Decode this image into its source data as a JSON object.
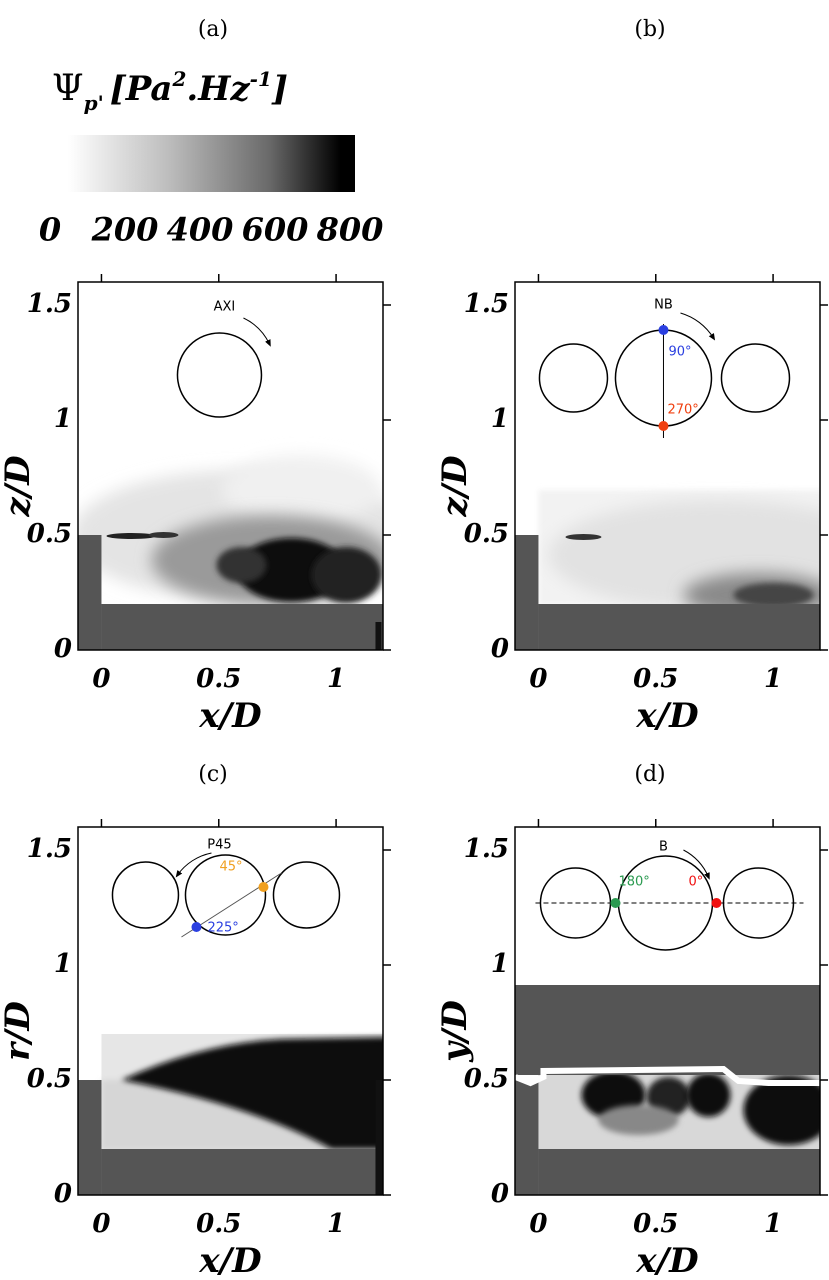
{
  "colorbar": {
    "title_parts": [
      "Ψ",
      "p'",
      "[Pa",
      "2",
      ".Hz",
      "-1",
      "]"
    ],
    "lim": [
      0,
      800
    ],
    "ticks": [
      0,
      200,
      400,
      600,
      800
    ]
  },
  "chart_data": [
    {
      "type": "field",
      "panel_label": "(a)",
      "xlabel": "x/D",
      "ylabel": "z/D",
      "xlim": [
        -0.1,
        1.2
      ],
      "ylim": [
        0,
        1.6
      ],
      "xticks": [
        0,
        0.5,
        1
      ],
      "yticks": [
        0,
        0.5,
        1,
        1.5
      ],
      "annotations": [
        "AXI"
      ]
    },
    {
      "type": "field",
      "panel_label": "(b)",
      "xlabel": "x/D",
      "ylabel": "z/D",
      "xlim": [
        -0.1,
        1.2
      ],
      "ylim": [
        0,
        1.6
      ],
      "xticks": [
        0,
        0.5,
        1
      ],
      "yticks": [
        0,
        0.5,
        1,
        1.5
      ],
      "annotations": [
        "NB",
        "90°",
        "270°"
      ]
    },
    {
      "type": "field",
      "panel_label": "(c)",
      "xlabel": "x/D",
      "ylabel": "r/D",
      "xlim": [
        -0.1,
        1.2
      ],
      "ylim": [
        0,
        1.6
      ],
      "xticks": [
        0,
        0.5,
        1
      ],
      "yticks": [
        0,
        0.5,
        1,
        1.5
      ],
      "annotations": [
        "P45",
        "45°",
        "225°"
      ]
    },
    {
      "type": "field",
      "panel_label": "(d)",
      "xlabel": "x/D",
      "ylabel": "y/D",
      "xlim": [
        -0.1,
        1.2
      ],
      "ylim": [
        0,
        1.6
      ],
      "xticks": [
        0,
        0.5,
        1
      ],
      "yticks": [
        0,
        0.5,
        1,
        1.5
      ],
      "annotations": [
        "B",
        "180°",
        "0°"
      ]
    }
  ]
}
